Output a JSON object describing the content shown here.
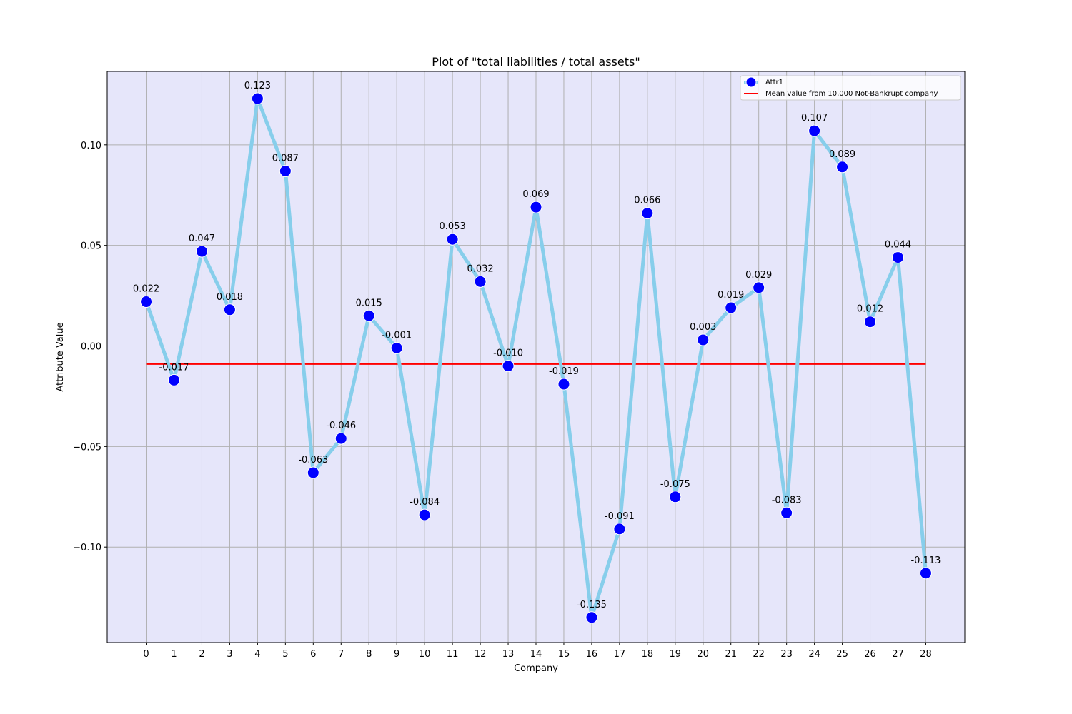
{
  "chart_data": {
    "type": "line",
    "title": "Plot of \"total liabilities / total assets\"",
    "xlabel": "Company",
    "ylabel": "Attribute Value",
    "x": [
      0,
      1,
      2,
      3,
      4,
      5,
      6,
      7,
      8,
      9,
      10,
      11,
      12,
      13,
      14,
      15,
      16,
      17,
      18,
      19,
      20,
      21,
      22,
      23,
      24,
      25,
      26,
      27,
      28
    ],
    "x_tick_labels": [
      "0",
      "1",
      "2",
      "3",
      "4",
      "5",
      "6",
      "7",
      "8",
      "9",
      "10",
      "11",
      "12",
      "13",
      "14",
      "15",
      "16",
      "17",
      "18",
      "19",
      "20",
      "21",
      "22",
      "23",
      "24",
      "25",
      "26",
      "27",
      "28"
    ],
    "y_tick_values": [
      -0.1,
      -0.05,
      0.0,
      0.05,
      0.1
    ],
    "y_tick_labels": [
      "−0.10",
      "−0.05",
      "0.00",
      "0.05",
      "0.10"
    ],
    "xlim": [
      -1.4,
      29.4
    ],
    "ylim": [
      -0.1475,
      0.1365
    ],
    "grid": true,
    "legend_position": "top-right",
    "plot_background": "#e6e6fa",
    "series": [
      {
        "name": "Attr1",
        "line_color": "#87ceeb",
        "marker_color": "#0000ff",
        "values": [
          0.022,
          -0.017,
          0.047,
          0.018,
          0.123,
          0.087,
          -0.063,
          -0.046,
          0.015,
          -0.001,
          -0.084,
          0.053,
          0.032,
          -0.01,
          0.069,
          -0.019,
          -0.135,
          -0.091,
          0.066,
          -0.075,
          0.003,
          0.019,
          0.029,
          -0.083,
          0.107,
          0.089,
          0.012,
          0.044,
          -0.113
        ],
        "data_labels": [
          "0.022",
          "-0.017",
          "0.047",
          "0.018",
          "0.123",
          "0.087",
          "-0.063",
          "-0.046",
          "0.015",
          "-0.001",
          "-0.084",
          "0.053",
          "0.032",
          "-0.010",
          "0.069",
          "-0.019",
          "-0.135",
          "-0.091",
          "0.066",
          "-0.075",
          "0.003",
          "0.019",
          "0.029",
          "-0.083",
          "0.107",
          "0.089",
          "0.012",
          "0.044",
          "-0.113"
        ]
      },
      {
        "name": "Mean value from 10,000 Not-Bankrupt company",
        "line_color": "#ff0000",
        "type": "hline",
        "value": -0.009,
        "x_range": [
          0,
          28
        ]
      }
    ]
  }
}
